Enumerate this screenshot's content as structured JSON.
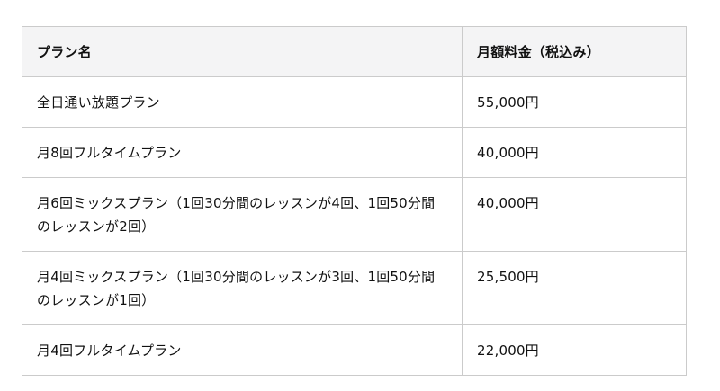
{
  "table": {
    "headers": {
      "plan": "プラン名",
      "price": "月額料金（税込み）"
    },
    "rows": [
      {
        "plan": "全日通い放題プラン",
        "price": "55,000円"
      },
      {
        "plan": "月8回フルタイムプラン",
        "price": "40,000円"
      },
      {
        "plan": "月6回ミックスプラン（1回30分間のレッスンが4回、1回50分間のレッスンが2回）",
        "price": "40,000円"
      },
      {
        "plan": "月4回ミックスプラン（1回30分間のレッスンが3回、1回50分間のレッスンが1回）",
        "price": "25,500円"
      },
      {
        "plan": "月4回フルタイムプラン",
        "price": "22,000円"
      }
    ],
    "colors": {
      "header_background": "#f4f4f5",
      "border": "#cbcbcb",
      "text": "#111111"
    }
  }
}
